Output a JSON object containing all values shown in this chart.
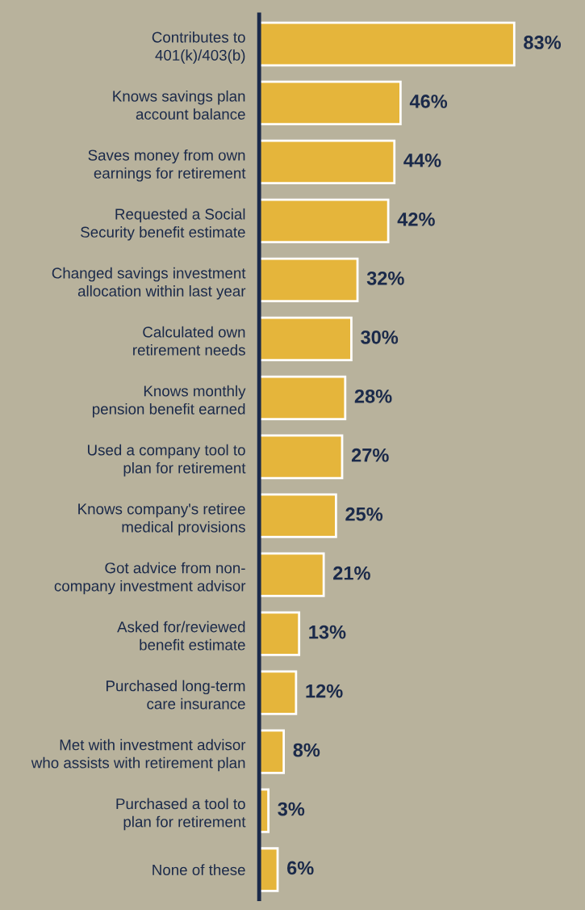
{
  "chart_data": {
    "type": "bar",
    "orientation": "horizontal",
    "categories": [
      "Contributes to\n401(k)/403(b)",
      "Knows savings plan\naccount balance",
      "Saves money from own\nearnings for retirement",
      "Requested a Social\nSecurity benefit estimate",
      "Changed savings investment\nallocation within last year",
      "Calculated own\nretirement needs",
      "Knows monthly\npension benefit earned",
      "Used a company tool to\nplan for retirement",
      "Knows company's retiree\nmedical provisions",
      "Got advice from non-\ncompany investment advisor",
      "Asked for/reviewed\nbenefit estimate",
      "Purchased long-term\ncare insurance",
      "Met with investment advisor\nwho assists with retirement plan",
      "Purchased a tool to\nplan for retirement",
      "None of these"
    ],
    "values": [
      83,
      46,
      44,
      42,
      32,
      30,
      28,
      27,
      25,
      21,
      13,
      12,
      8,
      3,
      6
    ],
    "value_labels": [
      "83%",
      "46%",
      "44%",
      "42%",
      "32%",
      "30%",
      "28%",
      "27%",
      "25%",
      "21%",
      "13%",
      "12%",
      "8%",
      "3%",
      "6%"
    ],
    "color": "#e5b53b",
    "grid": false,
    "legend": false
  }
}
